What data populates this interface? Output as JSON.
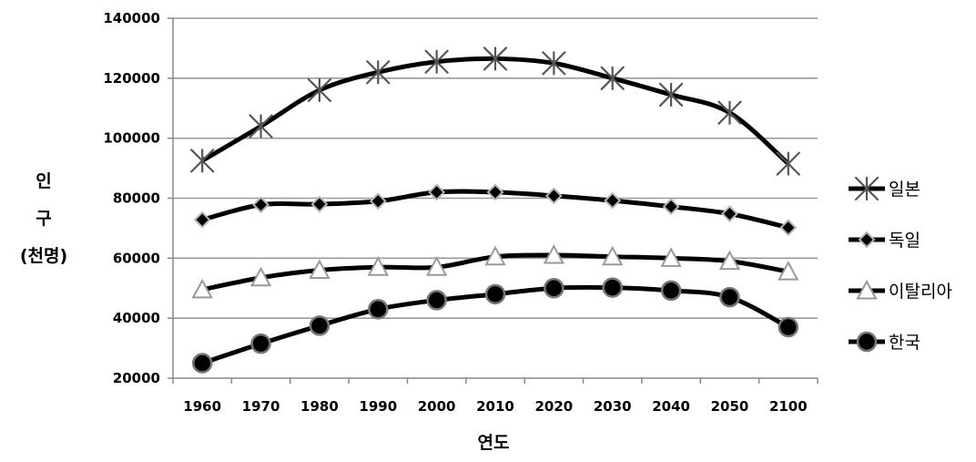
{
  "chart_data": {
    "type": "line",
    "title": "",
    "xlabel": "연도",
    "ylabel_lines": [
      "인",
      "구",
      "(천명)"
    ],
    "categories": [
      "1960",
      "1970",
      "1980",
      "1990",
      "2000",
      "2010",
      "2020",
      "2030",
      "2040",
      "2050",
      "2100"
    ],
    "ylim": [
      20000,
      140000
    ],
    "yticks": [
      20000,
      40000,
      60000,
      80000,
      100000,
      120000,
      140000
    ],
    "grid": true,
    "legend_position": "right",
    "series": [
      {
        "name": "일본",
        "marker": "asterisk",
        "values": [
          92500,
          104000,
          116000,
          122000,
          125500,
          126500,
          125000,
          120000,
          114500,
          108500,
          91500
        ]
      },
      {
        "name": "독일",
        "marker": "diamond",
        "values": [
          72800,
          77800,
          78000,
          79000,
          82000,
          82000,
          80800,
          79200,
          77200,
          74800,
          70200
        ]
      },
      {
        "name": "이탈리아",
        "marker": "triangle",
        "values": [
          49500,
          53500,
          56000,
          57000,
          57000,
          60500,
          61000,
          60500,
          60000,
          59000,
          55500
        ]
      },
      {
        "name": "한국",
        "marker": "circle",
        "values": [
          25000,
          31500,
          37500,
          43000,
          46000,
          48000,
          50000,
          50200,
          49200,
          47000,
          37000
        ]
      }
    ]
  }
}
